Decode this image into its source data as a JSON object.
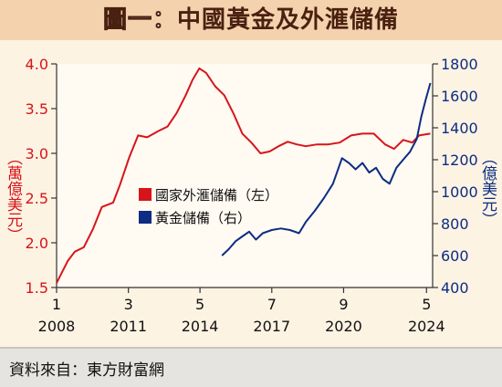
{
  "title": {
    "prefix": "圖一：",
    "text": "中國黃金及外滙儲備"
  },
  "source": "資料來自：東方財富網",
  "colors": {
    "reserves": "#d7141a",
    "gold": "#0c2d83",
    "title_bg": "#f3d2ad",
    "page_bg": "#fdf3e3"
  },
  "chart_data": {
    "type": "line",
    "y_left": {
      "label": "（萬億美元）",
      "range": [
        1.5,
        4.0
      ],
      "ticks": [
        "1.5",
        "2.0",
        "2.5",
        "3.0",
        "3.5",
        "4.0"
      ]
    },
    "y_right": {
      "label": "（億美元）",
      "range": [
        400,
        1800
      ],
      "ticks": [
        "400",
        "600",
        "800",
        "1000",
        "1200",
        "1400",
        "1600",
        "1800"
      ]
    },
    "x_ticks": [
      {
        "month": "1",
        "year": "2008",
        "t": 2008.0
      },
      {
        "month": "3",
        "year": "2011",
        "t": 2011.17
      },
      {
        "month": "5",
        "year": "2014",
        "t": 2014.33
      },
      {
        "month": "7",
        "year": "2017",
        "t": 2017.5
      },
      {
        "month": "9",
        "year": "2020",
        "t": 2020.67
      },
      {
        "month": "5",
        "year": "2024",
        "t": 2024.33
      }
    ],
    "x_range": [
      2008.0,
      2024.6
    ],
    "series": [
      {
        "name": "國家外滙儲備（左）",
        "axis": "left",
        "points": [
          [
            2008.0,
            1.55
          ],
          [
            2008.5,
            1.8
          ],
          [
            2008.8,
            1.9
          ],
          [
            2009.2,
            1.95
          ],
          [
            2009.6,
            2.15
          ],
          [
            2010.0,
            2.4
          ],
          [
            2010.5,
            2.45
          ],
          [
            2010.8,
            2.65
          ],
          [
            2011.2,
            2.95
          ],
          [
            2011.6,
            3.2
          ],
          [
            2012.0,
            3.18
          ],
          [
            2012.5,
            3.25
          ],
          [
            2012.9,
            3.3
          ],
          [
            2013.3,
            3.45
          ],
          [
            2013.7,
            3.65
          ],
          [
            2014.0,
            3.82
          ],
          [
            2014.3,
            3.95
          ],
          [
            2014.6,
            3.9
          ],
          [
            2015.0,
            3.75
          ],
          [
            2015.4,
            3.65
          ],
          [
            2015.8,
            3.45
          ],
          [
            2016.2,
            3.22
          ],
          [
            2016.6,
            3.12
          ],
          [
            2017.0,
            3.0
          ],
          [
            2017.4,
            3.02
          ],
          [
            2017.8,
            3.08
          ],
          [
            2018.2,
            3.13
          ],
          [
            2018.6,
            3.1
          ],
          [
            2019.0,
            3.08
          ],
          [
            2019.5,
            3.1
          ],
          [
            2020.0,
            3.1
          ],
          [
            2020.5,
            3.12
          ],
          [
            2021.0,
            3.2
          ],
          [
            2021.5,
            3.22
          ],
          [
            2022.0,
            3.22
          ],
          [
            2022.5,
            3.1
          ],
          [
            2022.9,
            3.05
          ],
          [
            2023.3,
            3.15
          ],
          [
            2023.7,
            3.12
          ],
          [
            2024.0,
            3.2
          ],
          [
            2024.5,
            3.22
          ]
        ]
      },
      {
        "name": "黃金儲備（右）",
        "axis": "right",
        "points": [
          [
            2015.3,
            600
          ],
          [
            2015.6,
            640
          ],
          [
            2015.9,
            690
          ],
          [
            2016.2,
            720
          ],
          [
            2016.5,
            750
          ],
          [
            2016.8,
            700
          ],
          [
            2017.1,
            740
          ],
          [
            2017.5,
            760
          ],
          [
            2017.9,
            770
          ],
          [
            2018.3,
            760
          ],
          [
            2018.7,
            740
          ],
          [
            2019.0,
            810
          ],
          [
            2019.4,
            880
          ],
          [
            2019.8,
            960
          ],
          [
            2020.2,
            1050
          ],
          [
            2020.6,
            1210
          ],
          [
            2020.9,
            1180
          ],
          [
            2021.2,
            1140
          ],
          [
            2021.5,
            1180
          ],
          [
            2021.8,
            1120
          ],
          [
            2022.1,
            1150
          ],
          [
            2022.4,
            1080
          ],
          [
            2022.7,
            1050
          ],
          [
            2023.0,
            1150
          ],
          [
            2023.3,
            1200
          ],
          [
            2023.6,
            1250
          ],
          [
            2023.9,
            1330
          ],
          [
            2024.1,
            1470
          ],
          [
            2024.3,
            1580
          ],
          [
            2024.5,
            1680
          ]
        ]
      }
    ]
  }
}
